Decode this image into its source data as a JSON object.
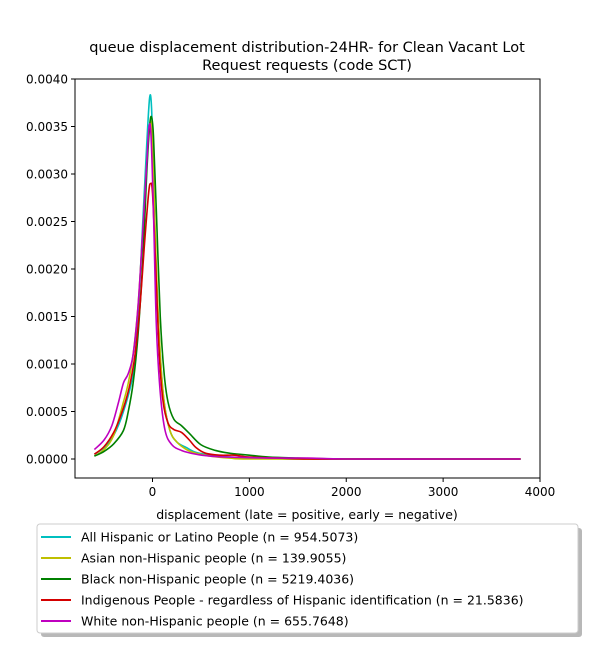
{
  "chart_data": {
    "type": "line",
    "title_line1": "queue displacement distribution-24HR-  for Clean Vacant Lot",
    "title_line2": "Request  requests (code SCT)",
    "xlabel": "displacement (late = positive, early = negative)",
    "ylabel": "",
    "xlim": [
      -800,
      4000
    ],
    "ylim": [
      -0.0002,
      0.004
    ],
    "x_ticks": [
      0,
      1000,
      2000,
      3000,
      4000
    ],
    "y_ticks": [
      0.0,
      0.0005,
      0.001,
      0.0015,
      0.002,
      0.0025,
      0.003,
      0.0035,
      0.004
    ],
    "x_tick_labels": [
      "0",
      "1000",
      "2000",
      "3000",
      "4000"
    ],
    "y_tick_labels": [
      "0.0000",
      "0.0005",
      "0.0010",
      "0.0015",
      "0.0020",
      "0.0025",
      "0.0030",
      "0.0035",
      "0.0040"
    ],
    "grid": false,
    "legend_position": "below plot",
    "series": [
      {
        "name": "All Hispanic or Latino People (n = 954.5073)",
        "color": "#00bfbf",
        "points": [
          [
            -600,
            5e-05
          ],
          [
            -500,
            0.00012
          ],
          [
            -400,
            0.00025
          ],
          [
            -300,
            0.0005
          ],
          [
            -200,
            0.0009
          ],
          [
            -150,
            0.0015
          ],
          [
            -100,
            0.0025
          ],
          [
            -60,
            0.0033
          ],
          [
            -30,
            0.0038
          ],
          [
            -10,
            0.0037
          ],
          [
            10,
            0.003
          ],
          [
            40,
            0.0019
          ],
          [
            80,
            0.0011
          ],
          [
            120,
            0.0006
          ],
          [
            180,
            0.0003
          ],
          [
            250,
            0.00018
          ],
          [
            350,
            0.00012
          ],
          [
            450,
            7e-05
          ],
          [
            600,
            4e-05
          ],
          [
            800,
            2e-05
          ],
          [
            1000,
            1e-05
          ],
          [
            1500,
            0.0
          ],
          [
            2000,
            0.0
          ],
          [
            3000,
            0.0
          ],
          [
            3800,
            0.0
          ]
        ]
      },
      {
        "name": "Asian non-Hispanic people (n = 139.9055)",
        "color": "#bfbf00",
        "points": [
          [
            -600,
            3e-05
          ],
          [
            -500,
            0.0001
          ],
          [
            -400,
            0.00025
          ],
          [
            -300,
            0.0006
          ],
          [
            -250,
            0.0008
          ],
          [
            -200,
            0.0011
          ],
          [
            -150,
            0.0016
          ],
          [
            -100,
            0.0024
          ],
          [
            -60,
            0.0031
          ],
          [
            -30,
            0.0035
          ],
          [
            -10,
            0.0035
          ],
          [
            10,
            0.003
          ],
          [
            40,
            0.002
          ],
          [
            80,
            0.0011
          ],
          [
            120,
            0.0006
          ],
          [
            180,
            0.0003
          ],
          [
            250,
            0.00018
          ],
          [
            350,
            0.0001
          ],
          [
            450,
            6e-05
          ],
          [
            600,
            3e-05
          ],
          [
            800,
            1e-05
          ],
          [
            1000,
            0.0
          ],
          [
            2000,
            0.0
          ],
          [
            3000,
            0.0
          ],
          [
            3800,
            0.0
          ]
        ]
      },
      {
        "name": "Black non-Hispanic people (n = 5219.4036)",
        "color": "#008000",
        "points": [
          [
            -600,
            3e-05
          ],
          [
            -500,
            8e-05
          ],
          [
            -400,
            0.00016
          ],
          [
            -300,
            0.0003
          ],
          [
            -250,
            0.0005
          ],
          [
            -200,
            0.0008
          ],
          [
            -150,
            0.0013
          ],
          [
            -100,
            0.0021
          ],
          [
            -60,
            0.003
          ],
          [
            -30,
            0.0035
          ],
          [
            -10,
            0.0036
          ],
          [
            10,
            0.0034
          ],
          [
            40,
            0.0026
          ],
          [
            80,
            0.0015
          ],
          [
            120,
            0.0009
          ],
          [
            160,
            0.0006
          ],
          [
            220,
            0.00042
          ],
          [
            300,
            0.00035
          ],
          [
            380,
            0.00027
          ],
          [
            500,
            0.00015
          ],
          [
            650,
            9e-05
          ],
          [
            800,
            6e-05
          ],
          [
            900,
            5e-05
          ],
          [
            1000,
            4e-05
          ],
          [
            1200,
            2e-05
          ],
          [
            1500,
            1e-05
          ],
          [
            2000,
            0.0
          ],
          [
            3000,
            0.0
          ],
          [
            3800,
            0.0
          ]
        ]
      },
      {
        "name": "Indigenous People - regardless of Hispanic identification (n = 21.5836)",
        "color": "#d40000",
        "points": [
          [
            -600,
            5e-05
          ],
          [
            -500,
            0.00013
          ],
          [
            -400,
            0.00028
          ],
          [
            -330,
            0.00045
          ],
          [
            -280,
            0.0006
          ],
          [
            -230,
            0.0008
          ],
          [
            -180,
            0.0011
          ],
          [
            -130,
            0.0016
          ],
          [
            -80,
            0.0023
          ],
          [
            -40,
            0.0028
          ],
          [
            -20,
            0.0029
          ],
          [
            0,
            0.0028
          ],
          [
            30,
            0.0021
          ],
          [
            70,
            0.0011
          ],
          [
            110,
            0.0006
          ],
          [
            160,
            0.00038
          ],
          [
            220,
            0.00031
          ],
          [
            300,
            0.00028
          ],
          [
            380,
            0.0002
          ],
          [
            450,
            0.00012
          ],
          [
            550,
            6e-05
          ],
          [
            700,
            4e-05
          ],
          [
            850,
            4e-05
          ],
          [
            1000,
            2e-05
          ],
          [
            1300,
            1e-05
          ],
          [
            1600,
            0.0
          ],
          [
            2000,
            0.0
          ],
          [
            3000,
            0.0
          ],
          [
            3800,
            0.0
          ]
        ]
      },
      {
        "name": "White non-Hispanic people (n = 655.7648)",
        "color": "#bf00bf",
        "points": [
          [
            -600,
            0.0001
          ],
          [
            -500,
            0.0002
          ],
          [
            -420,
            0.00035
          ],
          [
            -350,
            0.0006
          ],
          [
            -300,
            0.0008
          ],
          [
            -250,
            0.0009
          ],
          [
            -200,
            0.0011
          ],
          [
            -150,
            0.0016
          ],
          [
            -100,
            0.0024
          ],
          [
            -60,
            0.0031
          ],
          [
            -35,
            0.0035
          ],
          [
            -15,
            0.0034
          ],
          [
            10,
            0.0026
          ],
          [
            40,
            0.0014
          ],
          [
            80,
            0.0007
          ],
          [
            130,
            0.0003
          ],
          [
            200,
            0.00015
          ],
          [
            300,
            9e-05
          ],
          [
            450,
            5e-05
          ],
          [
            600,
            3e-05
          ],
          [
            800,
            2e-05
          ],
          [
            1200,
            1e-05
          ],
          [
            1600,
            1e-05
          ],
          [
            2000,
            0.0
          ],
          [
            3000,
            0.0
          ],
          [
            3800,
            0.0
          ]
        ]
      }
    ]
  }
}
